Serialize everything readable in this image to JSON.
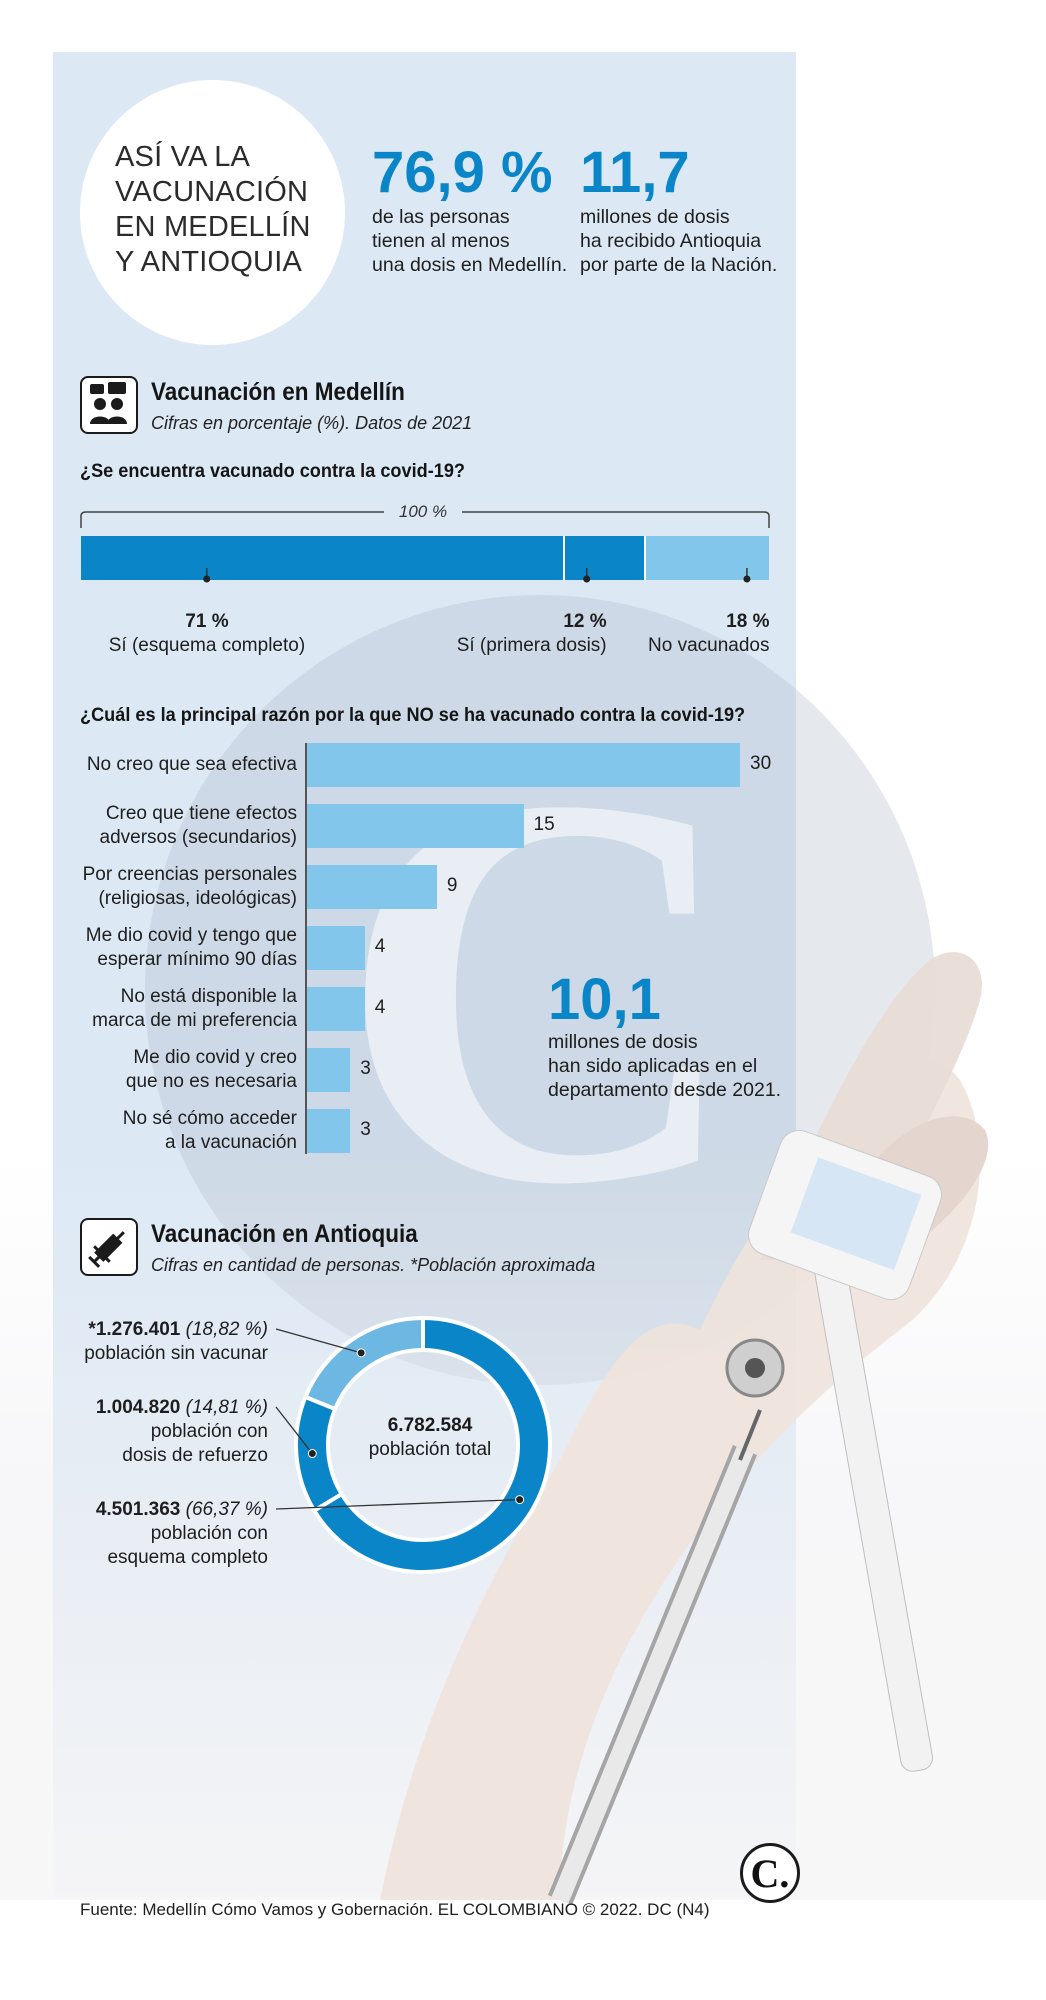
{
  "title_lines": [
    "ASÍ VA LA",
    "VACUNACIÓN",
    "EN MEDELLÍN",
    "Y ANTIOQUIA"
  ],
  "stats": {
    "medellin": {
      "value": "76,9 %",
      "desc": [
        "de las personas",
        "tienen al menos",
        "una dosis en Medellín."
      ]
    },
    "antioquia_dosis": {
      "value": "11,7",
      "desc": [
        "millones de dosis",
        "ha recibido Antioquia",
        "por parte de la Nación."
      ]
    },
    "aplicadas": {
      "value": "10,1",
      "desc": [
        "millones de dosis",
        "han sido aplicadas en el",
        "departamento desde 2021."
      ]
    }
  },
  "section1": {
    "title": "Vacunación en Medellín",
    "subtitle": "Cifras en porcentaje (%). Datos de 2021"
  },
  "section2": {
    "title": "Vacunación en Antioquia",
    "subtitle": "Cifras en cantidad de personas. *Población aproximada"
  },
  "colors": {
    "dark_blue": "#0a86c8",
    "light_blue": "#82c6ec",
    "panel": "#dce9f5",
    "donut_light": "#6db8e3"
  },
  "footer": "Fuente: Medellín Cómo Vamos y Gobernación. EL COLOMBIANO © 2022. DC (N4)",
  "logo": "C.",
  "chart_data": [
    {
      "type": "bar",
      "stacked": true,
      "title": "¿Se encuentra vacunado contra la covid-19?",
      "total_label": "100 %",
      "categories": [
        "71 %",
        "12 %",
        "18 %"
      ],
      "series": [
        {
          "name": "Sí (esquema completo)",
          "value": 71,
          "label": "71 %",
          "color": "#0a86c8"
        },
        {
          "name": "Sí (primera dosis)",
          "value": 12,
          "label": "12 %",
          "color": "#0a86c8"
        },
        {
          "name": "No vacunados",
          "value": 18,
          "label": "18 %",
          "color": "#82c6ec"
        }
      ]
    },
    {
      "type": "bar",
      "orientation": "horizontal",
      "title": "¿Cuál es la principal razón por la que NO se ha vacunado contra la covid-19?",
      "categories": [
        [
          "No creo que sea efectiva"
        ],
        [
          "Creo que tiene efectos",
          "adversos (secundarios)"
        ],
        [
          "Por creencias personales",
          "(religiosas, ideológicas)"
        ],
        [
          "Me dio covid y tengo que",
          "esperar mínimo 90 días"
        ],
        [
          "No está disponible la",
          "marca de mi preferencia"
        ],
        [
          "Me dio covid y creo",
          "que no es necesaria"
        ],
        [
          "No sé cómo acceder",
          "a la vacunación"
        ]
      ],
      "values": [
        30,
        15,
        9,
        4,
        4,
        3,
        3
      ],
      "xlim": [
        0,
        30
      ]
    },
    {
      "type": "pie",
      "donut": true,
      "center_value": "6.782.584",
      "center_label": "población total",
      "slices": [
        {
          "value": 1276401,
          "value_text": "*1.276.401",
          "pct": "(18,82 %)",
          "label_lines": [
            "población sin vacunar"
          ],
          "color": "#6db8e3"
        },
        {
          "value": 1004820,
          "value_text": "1.004.820",
          "pct": "(14,81 %)",
          "label_lines": [
            "población con",
            "dosis de refuerzo"
          ],
          "color": "#0a86c8"
        },
        {
          "value": 4501363,
          "value_text": "4.501.363",
          "pct": "(66,37 %)",
          "label_lines": [
            "población con",
            "esquema completo"
          ],
          "color": "#0a86c8"
        }
      ]
    }
  ]
}
